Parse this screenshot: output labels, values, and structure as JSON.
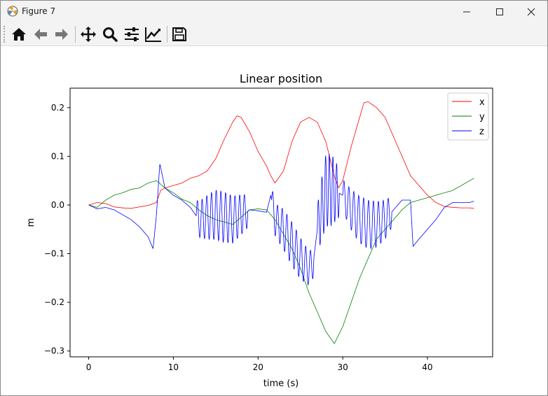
{
  "window": {
    "title": "Figure 7",
    "icons": [
      "matplotlib-logo-icon",
      "minimize-icon",
      "maximize-icon",
      "close-icon"
    ]
  },
  "toolbar": {
    "tools": [
      {
        "name": "home-icon",
        "label": "Home"
      },
      {
        "name": "back-arrow-icon",
        "label": "Back"
      },
      {
        "name": "forward-arrow-icon",
        "label": "Forward"
      },
      {
        "name": "pan-move-icon",
        "label": "Pan"
      },
      {
        "name": "zoom-magnifier-icon",
        "label": "Zoom"
      },
      {
        "name": "configure-subplots-icon",
        "label": "Subplots"
      },
      {
        "name": "edit-axis-icon",
        "label": "Customize"
      },
      {
        "name": "save-floppy-icon",
        "label": "Save"
      }
    ]
  },
  "chart_data": {
    "type": "line",
    "title": "Linear position",
    "xlabel": "time (s)",
    "ylabel": "m",
    "xlim": [
      -2.2,
      47.7
    ],
    "ylim": [
      -0.312,
      0.24
    ],
    "xticks": [
      0,
      10,
      20,
      30,
      40
    ],
    "yticks": [
      0.2,
      0.1,
      0.0,
      -0.1,
      -0.2,
      -0.3
    ],
    "ytick_labels": [
      "0.2",
      "0.1",
      "0.0",
      "−0.1",
      "−0.2",
      "−0.3"
    ],
    "grid": false,
    "legend": "top-right",
    "series": [
      {
        "name": "x",
        "color": "#ff0000",
        "points": [
          [
            0,
            0
          ],
          [
            1,
            0.005
          ],
          [
            2,
            0.003
          ],
          [
            3,
            -0.004
          ],
          [
            4,
            -0.006
          ],
          [
            5,
            -0.007
          ],
          [
            6,
            -0.004
          ],
          [
            7,
            -0.001
          ],
          [
            8,
            0.005
          ],
          [
            8.5,
            0.03
          ],
          [
            9,
            0.035
          ],
          [
            10,
            0.04
          ],
          [
            11,
            0.045
          ],
          [
            12,
            0.055
          ],
          [
            13,
            0.06
          ],
          [
            14,
            0.07
          ],
          [
            15,
            0.095
          ],
          [
            16,
            0.135
          ],
          [
            17,
            0.17
          ],
          [
            17.5,
            0.183
          ],
          [
            18,
            0.18
          ],
          [
            19,
            0.15
          ],
          [
            20,
            0.11
          ],
          [
            21,
            0.08
          ],
          [
            21.5,
            0.06
          ],
          [
            22,
            0.045
          ],
          [
            23,
            0.07
          ],
          [
            24,
            0.13
          ],
          [
            25,
            0.17
          ],
          [
            26,
            0.18
          ],
          [
            27,
            0.17
          ],
          [
            28,
            0.13
          ],
          [
            29,
            0.06
          ],
          [
            29.5,
            0.035
          ],
          [
            30,
            0.05
          ],
          [
            31,
            0.12
          ],
          [
            32,
            0.18
          ],
          [
            32.5,
            0.21
          ],
          [
            33,
            0.212
          ],
          [
            34,
            0.2
          ],
          [
            35,
            0.18
          ],
          [
            36,
            0.14
          ],
          [
            37,
            0.1
          ],
          [
            38,
            0.06
          ],
          [
            39,
            0.04
          ],
          [
            40,
            0.02
          ],
          [
            41,
            0.005
          ],
          [
            42,
            -0.003
          ],
          [
            43,
            -0.005
          ],
          [
            44,
            -0.006
          ],
          [
            45,
            -0.006
          ],
          [
            45.5,
            -0.007
          ]
        ]
      },
      {
        "name": "y",
        "color": "#008000",
        "points": [
          [
            0,
            0
          ],
          [
            1,
            -0.005
          ],
          [
            2,
            0.01
          ],
          [
            3,
            0.02
          ],
          [
            4,
            0.025
          ],
          [
            5,
            0.032
          ],
          [
            6,
            0.035
          ],
          [
            7,
            0.045
          ],
          [
            8,
            0.05
          ],
          [
            9,
            0.035
          ],
          [
            10,
            0.025
          ],
          [
            11,
            0.012
          ],
          [
            12,
            0.005
          ],
          [
            13,
            -0.01
          ],
          [
            14,
            -0.022
          ],
          [
            15,
            -0.03
          ],
          [
            16,
            -0.035
          ],
          [
            17,
            -0.04
          ],
          [
            18,
            -0.025
          ],
          [
            19,
            -0.01
          ],
          [
            20,
            -0.008
          ],
          [
            21,
            -0.01
          ],
          [
            22,
            -0.03
          ],
          [
            23,
            -0.06
          ],
          [
            24,
            -0.09
          ],
          [
            25,
            -0.13
          ],
          [
            26,
            -0.18
          ],
          [
            27,
            -0.22
          ],
          [
            28,
            -0.26
          ],
          [
            29,
            -0.285
          ],
          [
            30,
            -0.25
          ],
          [
            31,
            -0.2
          ],
          [
            32,
            -0.15
          ],
          [
            33,
            -0.11
          ],
          [
            34,
            -0.07
          ],
          [
            35,
            -0.05
          ],
          [
            36,
            -0.03
          ],
          [
            37,
            -0.01
          ],
          [
            38,
            0.005
          ],
          [
            39,
            0.01
          ],
          [
            40,
            0.015
          ],
          [
            41,
            0.02
          ],
          [
            42,
            0.025
          ],
          [
            43,
            0.03
          ],
          [
            44,
            0.04
          ],
          [
            45,
            0.05
          ],
          [
            45.5,
            0.055
          ]
        ]
      },
      {
        "name": "z",
        "color": "#0000ff",
        "points": [
          [
            0,
            0
          ],
          [
            1,
            -0.008
          ],
          [
            2,
            -0.005
          ],
          [
            3,
            -0.01
          ],
          [
            4,
            -0.02
          ],
          [
            5,
            -0.03
          ],
          [
            6,
            -0.045
          ],
          [
            7,
            -0.065
          ],
          [
            7.6,
            -0.09
          ],
          [
            8,
            -0.02
          ],
          [
            8.4,
            0.085
          ],
          [
            9,
            0.035
          ],
          [
            10,
            0.02
          ],
          [
            11,
            0.01
          ],
          [
            12,
            -0.005
          ],
          [
            13,
            -0.03
          ],
          [
            14,
            -0.025
          ],
          [
            15,
            -0.02
          ],
          [
            16,
            -0.025
          ],
          [
            17,
            -0.03
          ],
          [
            18,
            -0.02
          ],
          [
            19,
            -0.01
          ],
          [
            20,
            -0.012
          ],
          [
            21,
            -0.015
          ],
          [
            21.5,
            0.02
          ],
          [
            22,
            -0.03
          ],
          [
            23,
            -0.05
          ],
          [
            24,
            -0.08
          ],
          [
            25,
            -0.11
          ],
          [
            26,
            -0.13
          ],
          [
            26.5,
            -0.12
          ],
          [
            27,
            -0.05
          ],
          [
            28,
            0.03
          ],
          [
            29,
            0.03
          ],
          [
            30,
            0.02
          ],
          [
            31,
            -0.01
          ],
          [
            32,
            -0.03
          ],
          [
            33,
            -0.04
          ],
          [
            34,
            -0.04
          ],
          [
            35,
            -0.03
          ],
          [
            36,
            -0.01
          ],
          [
            37,
            0.01
          ],
          [
            38,
            0.01
          ],
          [
            38.3,
            -0.085
          ],
          [
            39,
            -0.07
          ],
          [
            40,
            -0.05
          ],
          [
            41,
            -0.03
          ],
          [
            42,
            -0.005
          ],
          [
            43,
            0.005
          ],
          [
            44,
            0.005
          ],
          [
            45,
            0.005
          ],
          [
            45.5,
            0.008
          ]
        ],
        "oscillations": [
          {
            "t0": 12.7,
            "t1": 18.8,
            "cycles": 11,
            "amp": 0.052
          },
          {
            "t0": 21.6,
            "t1": 26.6,
            "cycles": 9,
            "amp": 0.045
          },
          {
            "t0": 27.0,
            "t1": 29.6,
            "cycles": 6,
            "amp": 0.075
          },
          {
            "t0": 30.0,
            "t1": 35.8,
            "cycles": 10,
            "amp": 0.05
          }
        ]
      }
    ]
  }
}
